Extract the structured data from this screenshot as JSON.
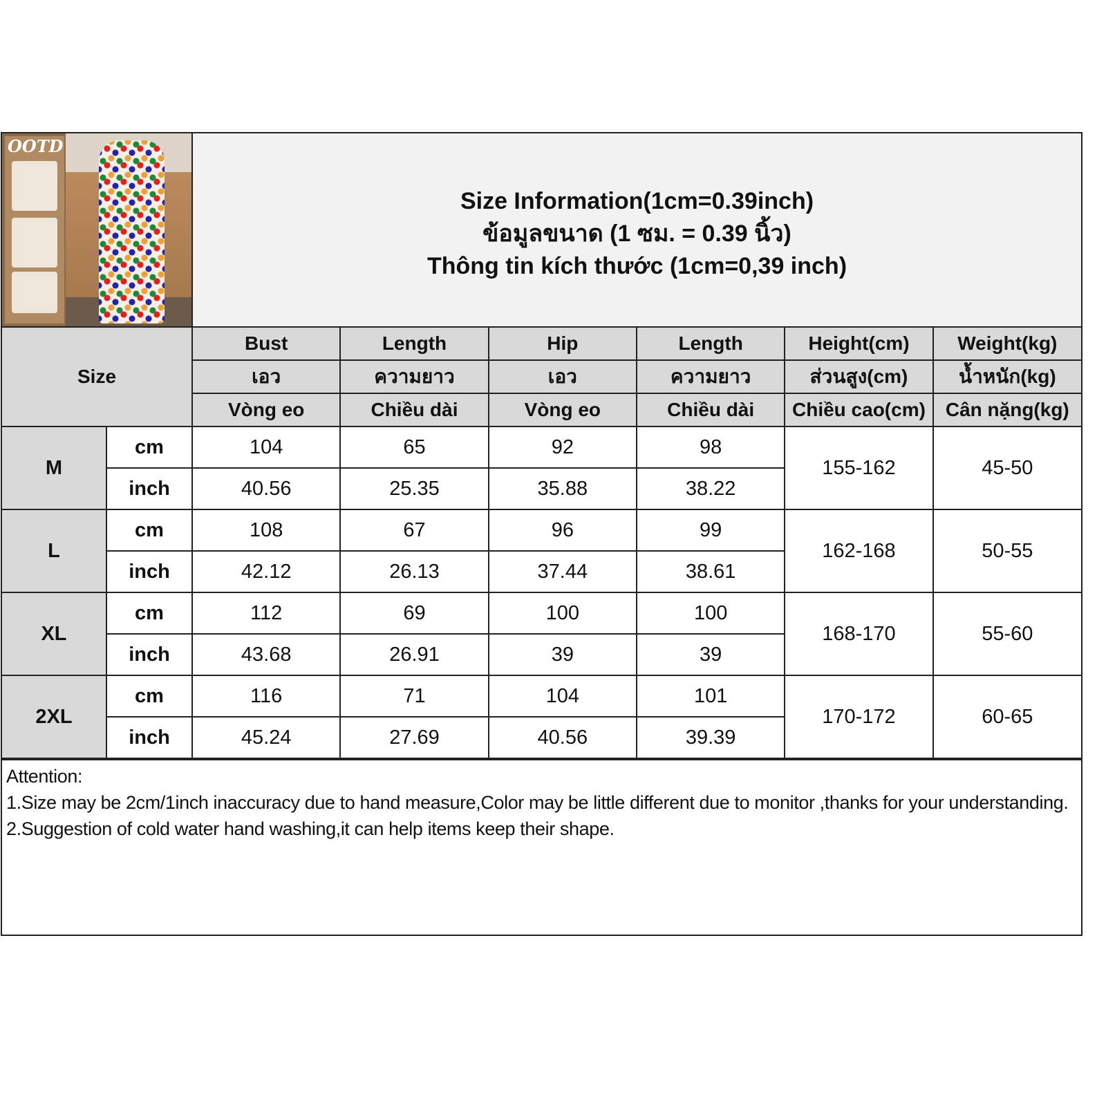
{
  "photo": {
    "logo_text": "OOTD"
  },
  "title": {
    "en": "Size Information(1cm=0.39inch)",
    "th": "ข้อมูลขนาด (1 ซม. = 0.39 นิ้ว)",
    "vi": "Thông tin kích thước (1cm=0,39 inch)"
  },
  "header": {
    "size_label": "Size",
    "columns": [
      {
        "en": "Bust",
        "th": "เอว",
        "vi": "Vòng eo"
      },
      {
        "en": "Length",
        "th": "ความยาว",
        "vi": "Chiều dài"
      },
      {
        "en": "Hip",
        "th": "เอว",
        "vi": "Vòng eo"
      },
      {
        "en": "Length",
        "th": "ความยาว",
        "vi": "Chiều dài"
      },
      {
        "en": "Height(cm)",
        "th": "ส่วนสูง(cm)",
        "vi": "Chiều cao(cm)"
      },
      {
        "en": "Weight(kg)",
        "th": "น้ำหนัก(kg)",
        "vi": "Cân nặng(kg)"
      }
    ]
  },
  "rows": [
    {
      "size": "M",
      "cm_label": "cm",
      "inch_label": "inch",
      "cm": [
        "104",
        "65",
        "92",
        "98"
      ],
      "inch": [
        "40.56",
        "25.35",
        "35.88",
        "38.22"
      ],
      "height": "155-162",
      "weight": "45-50"
    },
    {
      "size": "L",
      "cm_label": "cm",
      "inch_label": "inch",
      "cm": [
        "108",
        "67",
        "96",
        "99"
      ],
      "inch": [
        "42.12",
        "26.13",
        "37.44",
        "38.61"
      ],
      "height": "162-168",
      "weight": "50-55"
    },
    {
      "size": "XL",
      "cm_label": "cm",
      "inch_label": "inch",
      "cm": [
        "112",
        "69",
        "100",
        "100"
      ],
      "inch": [
        "43.68",
        "26.91",
        "39",
        "39"
      ],
      "height": "168-170",
      "weight": "55-60"
    },
    {
      "size": "2XL",
      "cm_label": "cm",
      "inch_label": "inch",
      "cm": [
        "116",
        "71",
        "104",
        "101"
      ],
      "inch": [
        "45.24",
        "27.69",
        "40.56",
        "39.39"
      ],
      "height": "170-172",
      "weight": "60-65"
    }
  ],
  "notes": {
    "heading": "Attention:",
    "lines": [
      "1.Size may be 2cm/1inch inaccuracy due to hand measure,Color may be little different due to monitor ,thanks for your understanding.",
      "2.Suggestion of cold water hand washing,it can help items keep their shape."
    ]
  }
}
